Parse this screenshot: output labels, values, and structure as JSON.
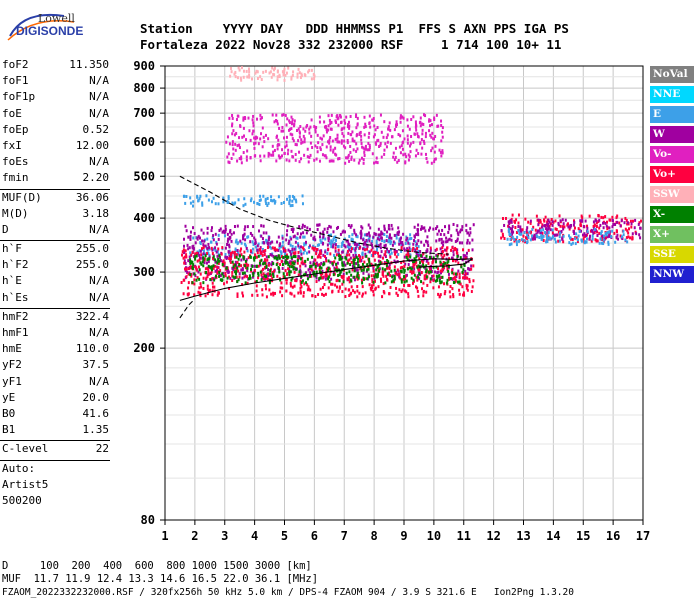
{
  "logo": {
    "line1": "Lowell",
    "line2": "DIGISONDE"
  },
  "header": {
    "row1": "Station    YYYY DAY   DDD HHMMSS P1  FFS S AXN PPS IGA PS",
    "row2": "Fortaleza 2022 Nov28 332 232000 RSF     1 714 100 10+ 11"
  },
  "params": {
    "group1": [
      {
        "k": "foF2",
        "v": "11.350"
      },
      {
        "k": "foF1",
        "v": "N/A"
      },
      {
        "k": "foF1p",
        "v": "N/A"
      },
      {
        "k": "foE",
        "v": "N/A"
      },
      {
        "k": "foEp",
        "v": "0.52"
      },
      {
        "k": "fxI",
        "v": "12.00"
      },
      {
        "k": "foEs",
        "v": "N/A"
      },
      {
        "k": "fmin",
        "v": "2.20"
      }
    ],
    "group2": [
      {
        "k": "MUF(D)",
        "v": "36.06"
      },
      {
        "k": "M(D)",
        "v": "3.18"
      },
      {
        "k": "D",
        "v": "N/A"
      }
    ],
    "group3": [
      {
        "k": "h`F",
        "v": "255.0"
      },
      {
        "k": "h`F2",
        "v": "255.0"
      },
      {
        "k": "h`E",
        "v": "N/A"
      },
      {
        "k": "h`Es",
        "v": "N/A"
      }
    ],
    "group4": [
      {
        "k": "hmF2",
        "v": "322.4"
      },
      {
        "k": "hmF1",
        "v": "N/A"
      },
      {
        "k": "hmE",
        "v": "110.0"
      },
      {
        "k": "yF2",
        "v": "37.5"
      },
      {
        "k": "yF1",
        "v": "N/A"
      },
      {
        "k": "yE",
        "v": "20.0"
      },
      {
        "k": "B0",
        "v": "41.6"
      },
      {
        "k": "B1",
        "v": "1.35"
      }
    ],
    "clevel": {
      "k": "C-level",
      "v": "22"
    },
    "auto": [
      "Auto:",
      "Artist5",
      "500200"
    ]
  },
  "legend": [
    {
      "label": "NoVal",
      "color": "#808080"
    },
    {
      "label": "NNE",
      "color": "#00d8ff"
    },
    {
      "label": "E",
      "color": "#3da0e8"
    },
    {
      "label": "W",
      "color": "#a000a0"
    },
    {
      "label": "Vo-",
      "color": "#e020c0"
    },
    {
      "label": "Vo+",
      "color": "#ff0040"
    },
    {
      "label": "SSW",
      "color": "#ffb0b8"
    },
    {
      "label": "X-",
      "color": "#008000"
    },
    {
      "label": "X+",
      "color": "#70c060"
    },
    {
      "label": "SSE",
      "color": "#d8d800"
    },
    {
      "label": "NNW",
      "color": "#2020d0"
    }
  ],
  "chart_data": {
    "type": "scatter",
    "x_ticks": [
      1,
      2,
      3,
      4,
      5,
      6,
      7,
      8,
      9,
      10,
      11,
      12,
      13,
      14,
      15,
      16,
      17
    ],
    "y_ticks": [
      80,
      200,
      300,
      400,
      500,
      600,
      700,
      800,
      900
    ],
    "xlim": [
      1,
      17
    ],
    "ylim": [
      80,
      900
    ],
    "y_scale": "log",
    "grid": true,
    "profile_solid": [
      [
        1.5,
        258
      ],
      [
        2,
        264
      ],
      [
        3,
        275
      ],
      [
        4,
        283
      ],
      [
        5,
        290
      ],
      [
        6,
        297
      ],
      [
        7,
        304
      ],
      [
        8,
        311
      ],
      [
        9,
        318
      ],
      [
        10,
        322
      ],
      [
        10.8,
        321
      ],
      [
        11.3,
        322
      ],
      [
        11,
        313
      ],
      [
        10.4,
        310
      ],
      [
        9.5,
        308
      ]
    ],
    "profile_dashed": [
      [
        1.5,
        235
      ],
      [
        1.8,
        252
      ],
      [
        2,
        260
      ]
    ],
    "profile_dashed_top": [
      [
        1.5,
        500
      ],
      [
        2.5,
        460
      ],
      [
        3.5,
        420
      ],
      [
        4.5,
        395
      ],
      [
        5.5,
        378
      ],
      [
        6.5,
        364
      ],
      [
        7.5,
        350
      ],
      [
        8.5,
        340
      ],
      [
        9.5,
        333
      ],
      [
        10.5,
        330
      ]
    ],
    "cloud": [
      {
        "series": "E",
        "x": [
          1.6,
          5.6
        ],
        "y": [
          430,
          455
        ]
      },
      {
        "series": "E",
        "x": [
          1.8,
          9.5
        ],
        "y": [
          330,
          370
        ]
      },
      {
        "series": "W",
        "x": [
          1.6,
          11.3
        ],
        "y": [
          290,
          390
        ]
      },
      {
        "series": "Vo+",
        "x": [
          1.5,
          11.3
        ],
        "y": [
          265,
          345
        ]
      },
      {
        "series": "X-",
        "x": [
          1.8,
          11
        ],
        "y": [
          285,
          330
        ]
      },
      {
        "series": "Vo-",
        "x": [
          3,
          10.3
        ],
        "y": [
          540,
          700
        ]
      },
      {
        "series": "SSW",
        "x": [
          3,
          6
        ],
        "y": [
          840,
          900
        ]
      },
      {
        "series": "Vo+",
        "x": [
          12.2,
          16.9
        ],
        "y": [
          355,
          410
        ]
      },
      {
        "series": "W",
        "x": [
          12.2,
          16.9
        ],
        "y": [
          360,
          400
        ]
      },
      {
        "series": "E",
        "x": [
          12.4,
          16.5
        ],
        "y": [
          350,
          380
        ]
      }
    ]
  },
  "footer": {
    "d_row": "D     100  200  400  600  800 1000 1500 3000 [km]",
    "muf_row": "MUF  11.7 11.9 12.4 13.3 14.6 16.5 22.0 36.1 [MHz]",
    "info_row": "FZAOM_2022332232000.RSF / 320fx256h 50 kHz 5.0 km / DPS-4 FZAOM 904 / 3.9 S 321.6 E   Ion2Png 1.3.20"
  }
}
